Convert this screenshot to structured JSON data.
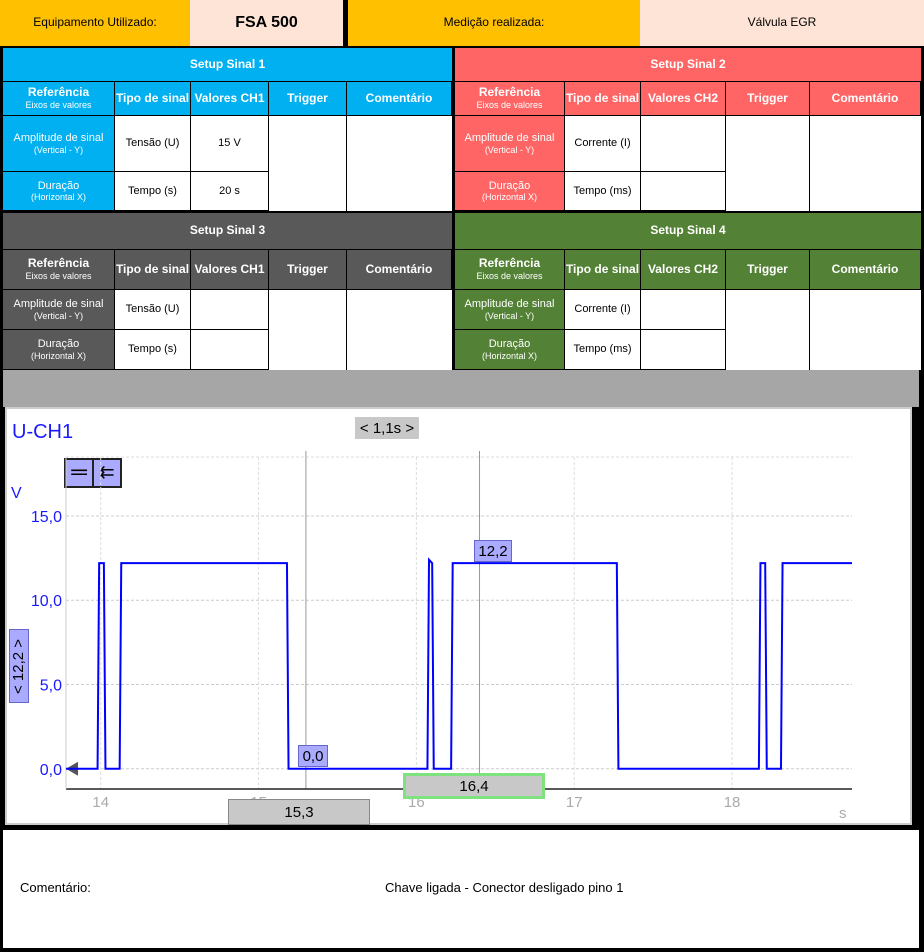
{
  "header": {
    "equip_label": "Equipamento Utilizado:",
    "equip_value": "FSA 500",
    "meas_label": "Medição realizada:",
    "meas_value": "Válvula EGR"
  },
  "colors": {
    "orange": "#ffc000",
    "peach": "#fde4d6",
    "blue": "#00b0f0",
    "red": "#ff6565",
    "gray": "#595959",
    "green": "#538135",
    "trace": "#0000ff"
  },
  "setups": [
    {
      "title": "Setup Sinal 1",
      "cols": [
        "Referência",
        "Eixos de valores",
        "Tipo de sinal",
        "Valores CH1",
        "Trigger",
        "Comentário"
      ],
      "rows": [
        {
          "ref": "Amplitude de sinal",
          "sub": "(Vertical - Y)",
          "tipo": "Tensão (U)",
          "valor": "15 V"
        },
        {
          "ref": "Duração",
          "sub": "(Horizontal X)",
          "tipo": "Tempo (s)",
          "valor": "20 s"
        }
      ]
    },
    {
      "title": "Setup Sinal 2",
      "cols": [
        "Referência",
        "Eixos de valores",
        "Tipo de sinal",
        "Valores CH2",
        "Trigger",
        "Comentário"
      ],
      "rows": [
        {
          "ref": "Amplitude de sinal",
          "sub": "(Vertical - Y)",
          "tipo": "Corrente (I)",
          "valor": ""
        },
        {
          "ref": "Duração",
          "sub": "(Horizontal X)",
          "tipo": "Tempo (ms)",
          "valor": ""
        }
      ]
    },
    {
      "title": "Setup Sinal 3",
      "cols": [
        "Referência",
        "Eixos de valores",
        "Tipo de sinal",
        "Valores CH1",
        "Trigger",
        "Comentário"
      ],
      "rows": [
        {
          "ref": "Amplitude de sinal",
          "sub": "(Vertical - Y)",
          "tipo": "Tensão (U)",
          "valor": ""
        },
        {
          "ref": "Duração",
          "sub": "(Horizontal X)",
          "tipo": "Tempo (s)",
          "valor": ""
        }
      ]
    },
    {
      "title": "Setup Sinal 4",
      "cols": [
        "Referência",
        "Eixos de valores",
        "Tipo de sinal",
        "Valores CH2",
        "Trigger",
        "Comentário"
      ],
      "rows": [
        {
          "ref": "Amplitude de sinal",
          "sub": "(Vertical - Y)",
          "tipo": "Corrente (I)",
          "valor": ""
        },
        {
          "ref": "Duração",
          "sub": "(Horizontal X)",
          "tipo": "Tempo (ms)",
          "valor": ""
        }
      ]
    }
  ],
  "scope": {
    "channel": "U-CH1",
    "unit_y": "V",
    "unit_x": "s",
    "delta_t": "< 1,1s >",
    "y_cursor": "< 12,2 >",
    "cursor1_x": "15,3",
    "cursor2_x": "16,4",
    "cursor1_y": "0,0",
    "cursor2_y": "12,2"
  },
  "chart_data": {
    "type": "line",
    "xlim": [
      13.78,
      18.76
    ],
    "ylim": [
      -1.2,
      18.5
    ],
    "xticks": [
      "14",
      "15",
      "16",
      "17",
      "18"
    ],
    "yticks": [
      "0,0",
      "5,0",
      "10,0",
      "15,0"
    ],
    "grid": true,
    "x": [
      13.78,
      13.98,
      13.99,
      14.02,
      14.03,
      14.12,
      14.13,
      15.18,
      15.19,
      16.07,
      16.08,
      16.1,
      16.11,
      16.22,
      16.23,
      17.27,
      17.28,
      18.17,
      18.18,
      18.21,
      18.22,
      18.31,
      18.32,
      18.76
    ],
    "y": [
      0,
      0,
      12.2,
      12.2,
      0,
      0,
      12.2,
      12.2,
      0,
      0,
      12.4,
      12.2,
      0,
      0,
      12.2,
      12.2,
      0,
      0,
      12.2,
      12.2,
      0,
      0,
      12.2,
      12.2
    ]
  },
  "footer": {
    "label": "Comentário:",
    "text": "Chave ligada - Conector desligado pino 1"
  }
}
